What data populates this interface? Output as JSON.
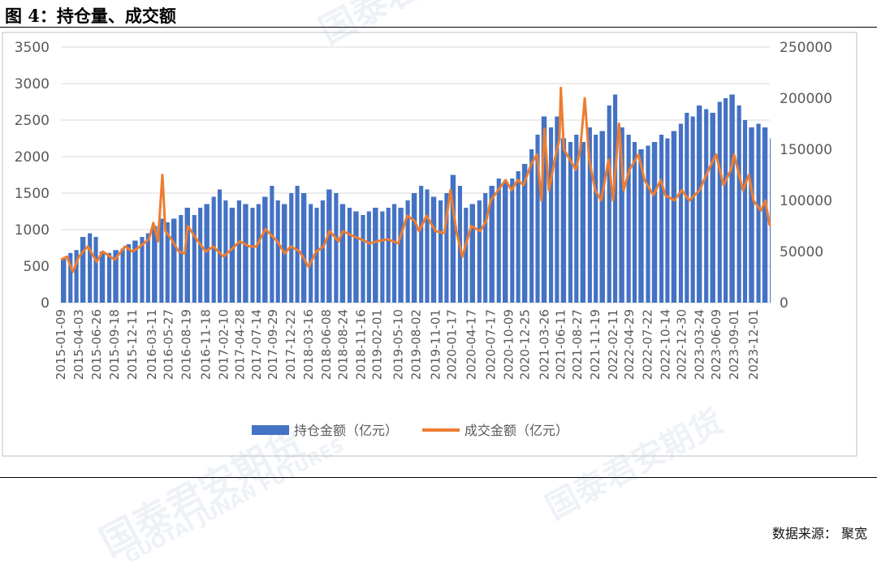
{
  "figure": {
    "title": "图 4：持仓量、成交额",
    "source": "数据来源：  聚宽",
    "watermark": "国泰君安期货",
    "watermark_en": "GUOTAI JUNAN FUTURES"
  },
  "colors": {
    "bar": "#4472c4",
    "line": "#ed7d31",
    "axis_text": "#595959",
    "grid": "#d9d9d9",
    "frame": "#bfbfbf"
  },
  "chart_data": {
    "type": "bar",
    "title": "",
    "x_range": [
      "2015-01-09",
      "2024-02-16"
    ],
    "x_ticks": [
      "2015-01-09",
      "2015-04-03",
      "2015-06-26",
      "2015-09-18",
      "2015-12-11",
      "2016-03-11",
      "2016-05-27",
      "2016-08-19",
      "2016-11-18",
      "2017-02-10",
      "2017-04-28",
      "2017-07-14",
      "2017-09-29",
      "2017-12-22",
      "2018-03-16",
      "2018-06-08",
      "2018-08-24",
      "2018-11-16",
      "2019-02-01",
      "2019-05-10",
      "2019-08-02",
      "2019-11-01",
      "2020-01-17",
      "2020-04-17",
      "2020-07-17",
      "2020-10-09",
      "2020-12-25",
      "2021-03-26",
      "2021-06-11",
      "2021-08-27",
      "2021-11-19",
      "2022-02-11",
      "2022-04-29",
      "2022-07-22",
      "2022-10-14",
      "2022-12-30",
      "2023-03-24",
      "2023-06-09",
      "2023-09-01",
      "2023-12-01"
    ],
    "y_left": {
      "ylim": [
        0,
        3500
      ],
      "ticks": [
        "0",
        "500",
        "1000",
        "1500",
        "2000",
        "2500",
        "3000",
        "3500"
      ]
    },
    "y_right": {
      "ylim": [
        0,
        250000
      ],
      "ticks": [
        "0",
        "50000",
        "100000",
        "150000",
        "200000",
        "250000"
      ]
    },
    "grid": "horizontal",
    "legend_position": "bottom-center",
    "series": [
      {
        "name": "持仓金额（亿元）",
        "type": "bar",
        "axis": "left",
        "points": [
          [
            "2015-01-09",
            600
          ],
          [
            "2015-02-13",
            680
          ],
          [
            "2015-03-13",
            720
          ],
          [
            "2015-04-10",
            900
          ],
          [
            "2015-05-15",
            950
          ],
          [
            "2015-06-12",
            900
          ],
          [
            "2015-07-10",
            700
          ],
          [
            "2015-08-14",
            680
          ],
          [
            "2015-09-11",
            720
          ],
          [
            "2015-10-16",
            740
          ],
          [
            "2015-11-13",
            800
          ],
          [
            "2015-12-11",
            850
          ],
          [
            "2016-01-15",
            900
          ],
          [
            "2016-02-12",
            950
          ],
          [
            "2016-03-11",
            1050
          ],
          [
            "2016-04-15",
            1150
          ],
          [
            "2016-05-13",
            1100
          ],
          [
            "2016-06-10",
            1150
          ],
          [
            "2016-07-15",
            1200
          ],
          [
            "2016-08-12",
            1300
          ],
          [
            "2016-09-16",
            1200
          ],
          [
            "2016-10-14",
            1300
          ],
          [
            "2016-11-11",
            1350
          ],
          [
            "2016-12-16",
            1450
          ],
          [
            "2017-01-13",
            1550
          ],
          [
            "2017-02-10",
            1400
          ],
          [
            "2017-03-10",
            1300
          ],
          [
            "2017-04-14",
            1400
          ],
          [
            "2017-05-12",
            1350
          ],
          [
            "2017-06-16",
            1300
          ],
          [
            "2017-07-14",
            1350
          ],
          [
            "2017-08-11",
            1450
          ],
          [
            "2017-09-15",
            1600
          ],
          [
            "2017-10-13",
            1400
          ],
          [
            "2017-11-10",
            1350
          ],
          [
            "2017-12-15",
            1500
          ],
          [
            "2018-01-12",
            1600
          ],
          [
            "2018-02-09",
            1500
          ],
          [
            "2018-03-16",
            1350
          ],
          [
            "2018-04-13",
            1300
          ],
          [
            "2018-05-11",
            1400
          ],
          [
            "2018-06-08",
            1550
          ],
          [
            "2018-07-13",
            1500
          ],
          [
            "2018-08-10",
            1350
          ],
          [
            "2018-09-14",
            1300
          ],
          [
            "2018-10-12",
            1250
          ],
          [
            "2018-11-16",
            1200
          ],
          [
            "2018-12-14",
            1250
          ],
          [
            "2019-01-11",
            1300
          ],
          [
            "2019-02-15",
            1250
          ],
          [
            "2019-03-15",
            1300
          ],
          [
            "2019-04-12",
            1350
          ],
          [
            "2019-05-10",
            1300
          ],
          [
            "2019-06-14",
            1400
          ],
          [
            "2019-07-12",
            1500
          ],
          [
            "2019-08-16",
            1600
          ],
          [
            "2019-09-13",
            1550
          ],
          [
            "2019-10-11",
            1450
          ],
          [
            "2019-11-15",
            1400
          ],
          [
            "2019-12-13",
            1500
          ],
          [
            "2020-01-10",
            1750
          ],
          [
            "2020-02-14",
            1600
          ],
          [
            "2020-03-13",
            1300
          ],
          [
            "2020-04-10",
            1350
          ],
          [
            "2020-05-15",
            1400
          ],
          [
            "2020-06-12",
            1500
          ],
          [
            "2020-07-10",
            1600
          ],
          [
            "2020-08-14",
            1700
          ],
          [
            "2020-09-11",
            1650
          ],
          [
            "2020-10-16",
            1700
          ],
          [
            "2020-11-13",
            1800
          ],
          [
            "2020-12-11",
            1900
          ],
          [
            "2021-01-15",
            2100
          ],
          [
            "2021-02-12",
            2300
          ],
          [
            "2021-03-12",
            2550
          ],
          [
            "2021-04-16",
            2400
          ],
          [
            "2021-05-14",
            2550
          ],
          [
            "2021-06-11",
            2250
          ],
          [
            "2021-07-16",
            2200
          ],
          [
            "2021-08-13",
            2300
          ],
          [
            "2021-09-10",
            2200
          ],
          [
            "2021-10-15",
            2400
          ],
          [
            "2021-11-12",
            2300
          ],
          [
            "2021-12-10",
            2350
          ],
          [
            "2022-01-14",
            2700
          ],
          [
            "2022-02-11",
            2850
          ],
          [
            "2022-03-11",
            2400
          ],
          [
            "2022-04-15",
            2300
          ],
          [
            "2022-05-13",
            2200
          ],
          [
            "2022-06-10",
            2100
          ],
          [
            "2022-07-15",
            2150
          ],
          [
            "2022-08-12",
            2200
          ],
          [
            "2022-09-16",
            2300
          ],
          [
            "2022-10-14",
            2250
          ],
          [
            "2022-11-11",
            2350
          ],
          [
            "2022-12-16",
            2450
          ],
          [
            "2023-01-13",
            2600
          ],
          [
            "2023-02-10",
            2550
          ],
          [
            "2023-03-10",
            2700
          ],
          [
            "2023-04-14",
            2650
          ],
          [
            "2023-05-12",
            2600
          ],
          [
            "2023-06-16",
            2750
          ],
          [
            "2023-07-14",
            2800
          ],
          [
            "2023-08-11",
            2850
          ],
          [
            "2023-09-15",
            2700
          ],
          [
            "2023-10-13",
            2500
          ],
          [
            "2023-11-10",
            2400
          ],
          [
            "2023-12-15",
            2450
          ],
          [
            "2024-01-12",
            2400
          ],
          [
            "2024-02-16",
            2250
          ]
        ]
      },
      {
        "name": "成交金额（亿元）",
        "type": "line",
        "axis": "right",
        "points": [
          [
            "2015-01-09",
            42000
          ],
          [
            "2015-02-06",
            45000
          ],
          [
            "2015-03-06",
            30000
          ],
          [
            "2015-04-03",
            45000
          ],
          [
            "2015-05-15",
            55000
          ],
          [
            "2015-06-26",
            40000
          ],
          [
            "2015-07-24",
            50000
          ],
          [
            "2015-09-18",
            42000
          ],
          [
            "2015-11-06",
            55000
          ],
          [
            "2015-12-11",
            50000
          ],
          [
            "2016-01-15",
            55000
          ],
          [
            "2016-02-26",
            62000
          ],
          [
            "2016-03-18",
            78000
          ],
          [
            "2016-04-08",
            60000
          ],
          [
            "2016-04-29",
            125000
          ],
          [
            "2016-05-13",
            70000
          ],
          [
            "2016-06-10",
            62000
          ],
          [
            "2016-07-15",
            50000
          ],
          [
            "2016-08-12",
            48000
          ],
          [
            "2016-08-26",
            75000
          ],
          [
            "2016-10-07",
            62000
          ],
          [
            "2016-11-18",
            50000
          ],
          [
            "2016-12-23",
            55000
          ],
          [
            "2017-02-10",
            45000
          ],
          [
            "2017-04-28",
            60000
          ],
          [
            "2017-06-09",
            55000
          ],
          [
            "2017-07-14",
            55000
          ],
          [
            "2017-08-25",
            72000
          ],
          [
            "2017-10-20",
            60000
          ],
          [
            "2017-11-24",
            48000
          ],
          [
            "2017-12-22",
            55000
          ],
          [
            "2018-02-02",
            50000
          ],
          [
            "2018-03-16",
            35000
          ],
          [
            "2018-04-20",
            50000
          ],
          [
            "2018-05-25",
            55000
          ],
          [
            "2018-06-22",
            70000
          ],
          [
            "2018-08-03",
            60000
          ],
          [
            "2018-08-24",
            70000
          ],
          [
            "2018-10-12",
            65000
          ],
          [
            "2018-11-16",
            62000
          ],
          [
            "2018-12-28",
            58000
          ],
          [
            "2019-02-01",
            60000
          ],
          [
            "2019-03-22",
            62000
          ],
          [
            "2019-05-10",
            58000
          ],
          [
            "2019-06-21",
            85000
          ],
          [
            "2019-07-26",
            80000
          ],
          [
            "2019-08-16",
            70000
          ],
          [
            "2019-09-20",
            85000
          ],
          [
            "2019-11-01",
            70000
          ],
          [
            "2019-12-13",
            68000
          ],
          [
            "2020-01-10",
            110000
          ],
          [
            "2020-02-07",
            70000
          ],
          [
            "2020-03-06",
            45000
          ],
          [
            "2020-04-17",
            75000
          ],
          [
            "2020-05-29",
            70000
          ],
          [
            "2020-06-26",
            80000
          ],
          [
            "2020-07-17",
            100000
          ],
          [
            "2020-08-21",
            110000
          ],
          [
            "2020-09-25",
            120000
          ],
          [
            "2020-10-23",
            110000
          ],
          [
            "2020-11-20",
            120000
          ],
          [
            "2020-12-18",
            115000
          ],
          [
            "2021-01-22",
            135000
          ],
          [
            "2021-02-19",
            145000
          ],
          [
            "2021-03-12",
            100000
          ],
          [
            "2021-03-26",
            170000
          ],
          [
            "2021-04-16",
            110000
          ],
          [
            "2021-05-14",
            140000
          ],
          [
            "2021-06-04",
            160000
          ],
          [
            "2021-06-11",
            210000
          ],
          [
            "2021-06-25",
            150000
          ],
          [
            "2021-07-23",
            140000
          ],
          [
            "2021-08-20",
            130000
          ],
          [
            "2021-09-10",
            150000
          ],
          [
            "2021-10-01",
            200000
          ],
          [
            "2021-10-22",
            140000
          ],
          [
            "2021-11-19",
            110000
          ],
          [
            "2021-12-17",
            100000
          ],
          [
            "2022-01-21",
            140000
          ],
          [
            "2022-02-11",
            100000
          ],
          [
            "2022-03-11",
            175000
          ],
          [
            "2022-04-01",
            110000
          ],
          [
            "2022-04-29",
            130000
          ],
          [
            "2022-06-10",
            145000
          ],
          [
            "2022-07-08",
            120000
          ],
          [
            "2022-08-19",
            105000
          ],
          [
            "2022-09-23",
            120000
          ],
          [
            "2022-10-14",
            105000
          ],
          [
            "2022-11-25",
            100000
          ],
          [
            "2022-12-30",
            110000
          ],
          [
            "2023-02-03",
            100000
          ],
          [
            "2023-03-24",
            110000
          ],
          [
            "2023-05-05",
            130000
          ],
          [
            "2023-06-09",
            145000
          ],
          [
            "2023-07-14",
            115000
          ],
          [
            "2023-08-18",
            130000
          ],
          [
            "2023-09-01",
            145000
          ],
          [
            "2023-10-13",
            110000
          ],
          [
            "2023-11-10",
            125000
          ],
          [
            "2023-12-01",
            100000
          ],
          [
            "2024-01-05",
            90000
          ],
          [
            "2024-01-26",
            100000
          ],
          [
            "2024-02-16",
            75000
          ]
        ]
      }
    ]
  }
}
